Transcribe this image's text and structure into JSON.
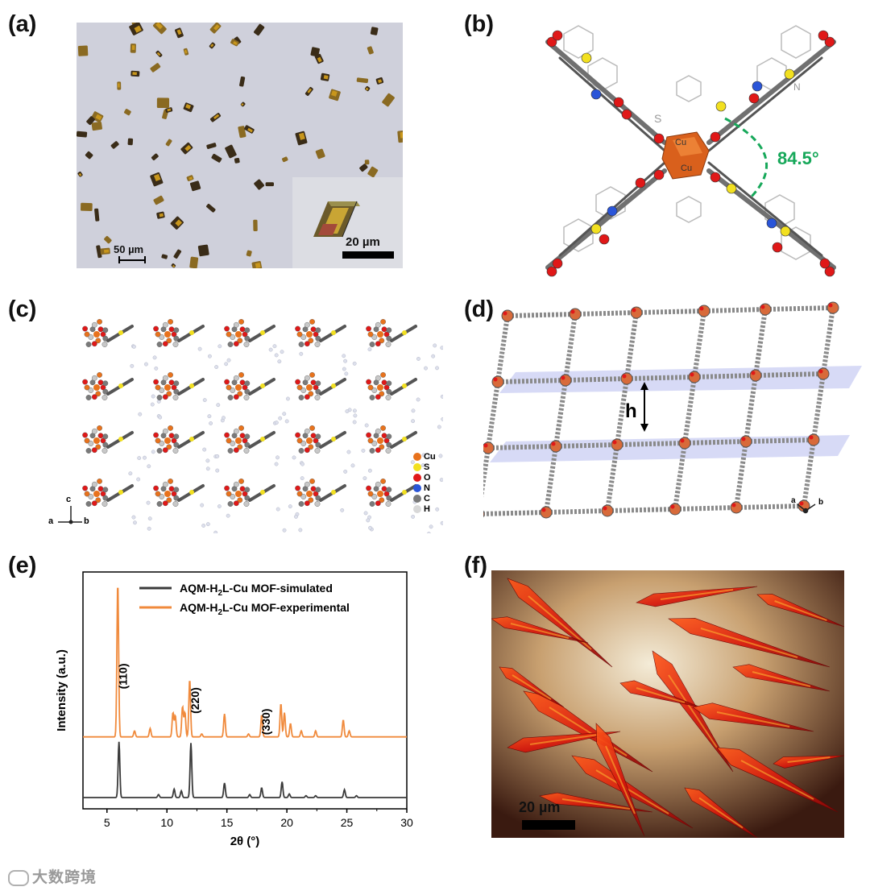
{
  "panels": {
    "a": {
      "label": "(a)",
      "scale_main": "50 µm",
      "scale_inset": "20 µm"
    },
    "b": {
      "label": "(b)",
      "angle": "84.5°",
      "atoms_center": [
        "Cu",
        "Cu"
      ],
      "ring_atoms": [
        "S",
        "N"
      ]
    },
    "c": {
      "label": "(c)",
      "axes": {
        "up": "c",
        "left": "a",
        "right": "b"
      },
      "legend": [
        {
          "symbol": "Cu",
          "color": "#e8721c"
        },
        {
          "symbol": "S",
          "color": "#f2e020"
        },
        {
          "symbol": "O",
          "color": "#e01818"
        },
        {
          "symbol": "N",
          "color": "#2a55d8"
        },
        {
          "symbol": "C",
          "color": "#7a7a7a"
        },
        {
          "symbol": "H",
          "color": "#d8d8d8"
        }
      ]
    },
    "d": {
      "label": "(d)",
      "h_label": "h",
      "axes": {
        "left": "a",
        "right": "b"
      }
    },
    "e": {
      "label": "(e)"
    },
    "f": {
      "label": "(f)",
      "scale": "20 µm"
    }
  },
  "chart_data": {
    "type": "line",
    "xlabel": "2θ (°)",
    "ylabel": "Intensity (a.u.)",
    "xlim": [
      3,
      30
    ],
    "xticks": [
      5,
      10,
      15,
      20,
      25,
      30
    ],
    "legend_position": "top-right",
    "legend": [
      {
        "name_parts": [
          "AQM-H",
          "2",
          "L-Cu MOF-simulated"
        ],
        "color": "#3a3a3a"
      },
      {
        "name_parts": [
          "AQM-H",
          "2",
          "L-Cu MOF-experimental"
        ],
        "color": "#f08a3c"
      }
    ],
    "series": [
      {
        "key": "simulated",
        "color": "#3a3a3a",
        "baseline": 0.0,
        "peaks": [
          [
            6.0,
            0.92
          ],
          [
            9.3,
            0.05
          ],
          [
            10.6,
            0.14
          ],
          [
            11.2,
            0.11
          ],
          [
            12.0,
            0.9
          ],
          [
            14.8,
            0.24
          ],
          [
            16.9,
            0.05
          ],
          [
            17.9,
            0.16
          ],
          [
            19.6,
            0.26
          ],
          [
            20.2,
            0.06
          ],
          [
            21.6,
            0.03
          ],
          [
            22.4,
            0.03
          ],
          [
            24.8,
            0.13
          ],
          [
            25.8,
            0.03
          ]
        ]
      },
      {
        "key": "experimental",
        "color": "#f08a3c",
        "baseline": 1.0,
        "peaks": [
          [
            5.9,
            2.55
          ],
          [
            7.3,
            0.1
          ],
          [
            8.6,
            0.14
          ],
          [
            10.5,
            0.4
          ],
          [
            10.7,
            0.35
          ],
          [
            11.3,
            0.5
          ],
          [
            11.5,
            0.4
          ],
          [
            11.9,
            0.95
          ],
          [
            12.9,
            0.05
          ],
          [
            14.8,
            0.38
          ],
          [
            16.8,
            0.05
          ],
          [
            17.9,
            0.36
          ],
          [
            19.5,
            0.55
          ],
          [
            19.8,
            0.4
          ],
          [
            20.3,
            0.22
          ],
          [
            21.2,
            0.1
          ],
          [
            22.4,
            0.1
          ],
          [
            24.7,
            0.28
          ],
          [
            25.2,
            0.1
          ]
        ]
      }
    ],
    "annotations": [
      {
        "text": "(110)",
        "x": 6.0
      },
      {
        "text": "(220)",
        "x": 12.0
      },
      {
        "text": "(330)",
        "x": 17.9
      }
    ]
  },
  "watermark": "大数跨境"
}
